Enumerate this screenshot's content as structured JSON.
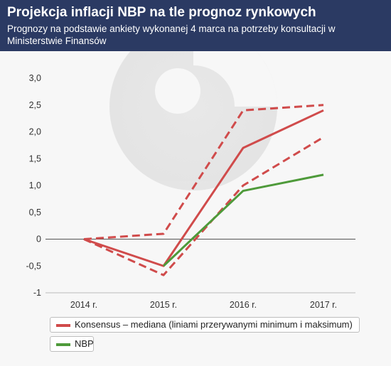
{
  "header": {
    "title": "Projekcja inflacji NBP na tle prognoz rynkowych",
    "subtitle": "Prognozy na podstawie ankiety wykonanej 4 marca na potrzeby konsultacji w Ministerstwie Finansów"
  },
  "legend": {
    "consensus": "Konsensus – mediana (liniami przerywanymi minimum i maksimum)",
    "nbp": "NBP"
  },
  "colors": {
    "header_bg": "#2b3a63",
    "consensus": "#d04b4b",
    "nbp": "#4e9a3a",
    "axis_text": "#333333"
  },
  "chart_data": {
    "type": "line",
    "categories": [
      "2014 r.",
      "2015 r.",
      "2016 r.",
      "2017 r."
    ],
    "y_tick_labels": [
      "3,0",
      "2,5",
      "2,0",
      "1,5",
      "1,0",
      "0,5",
      "0",
      "-0,5",
      "-1"
    ],
    "ylim": [
      -1,
      3
    ],
    "grid": false,
    "series": [
      {
        "name": "Konsensus – mediana (liniami przerywanymi minimum i maksimum)",
        "style": "solid",
        "color": "#d04b4b",
        "values": [
          0.0,
          -0.5,
          1.7,
          2.4
        ]
      },
      {
        "name": "",
        "style": "dashed",
        "color": "#d04b4b",
        "values": [
          0.0,
          0.1,
          2.4,
          2.5
        ]
      },
      {
        "name": "",
        "style": "dashed",
        "color": "#d04b4b",
        "values": [
          0.0,
          -0.67,
          1.0,
          1.9
        ]
      },
      {
        "name": "NBP",
        "style": "solid",
        "color": "#4e9a3a",
        "values": [
          null,
          -0.5,
          0.9,
          1.2
        ]
      }
    ]
  }
}
